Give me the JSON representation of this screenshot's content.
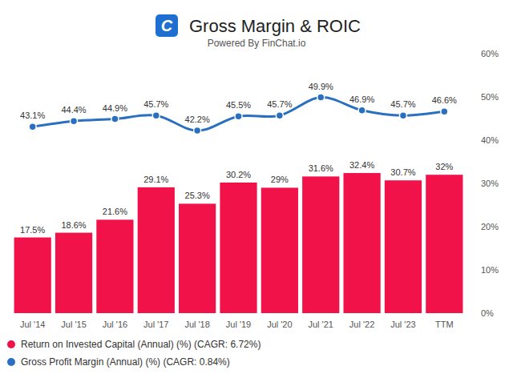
{
  "chart_data": {
    "type": "bar",
    "title": "Gross Margin & ROIC",
    "subtitle": "Powered By FinChat.io",
    "logo_text": "C",
    "categories": [
      "Jul '14",
      "Jul '15",
      "Jul '16",
      "Jul '17",
      "Jul '18",
      "Jul '19",
      "Jul '20",
      "Jul '21",
      "Jul '22",
      "Jul '23",
      "TTM"
    ],
    "series": [
      {
        "name": "Return on Invested Capital (Annual) (%) (CAGR: 6.72%)",
        "type": "bar",
        "color": "#f2124a",
        "values": [
          17.5,
          18.6,
          21.6,
          29.1,
          25.3,
          30.2,
          29,
          31.6,
          32.4,
          30.7,
          32
        ],
        "value_labels": [
          "17.5%",
          "18.6%",
          "21.6%",
          "29.1%",
          "25.3%",
          "30.2%",
          "29%",
          "31.6%",
          "32.4%",
          "30.7%",
          "32%"
        ]
      },
      {
        "name": "Gross Profit Margin (Annual) (%) (CAGR: 0.84%)",
        "type": "line",
        "color": "#2b6fc0",
        "marker": "circle",
        "values": [
          43.1,
          44.4,
          44.9,
          45.7,
          42.2,
          45.5,
          45.7,
          49.9,
          46.9,
          45.7,
          46.6
        ],
        "value_labels": [
          "43.1%",
          "44.4%",
          "44.9%",
          "45.7%",
          "42.2%",
          "45.5%",
          "45.7%",
          "49.9%",
          "46.9%",
          "45.7%",
          "46.6%"
        ]
      }
    ],
    "ylim": [
      0,
      60
    ],
    "yticks": [
      {
        "value": 0,
        "label": "0%"
      },
      {
        "value": 10,
        "label": "10%"
      },
      {
        "value": 20,
        "label": "20%"
      },
      {
        "value": 30,
        "label": "30%"
      },
      {
        "value": 40,
        "label": "40%"
      },
      {
        "value": 50,
        "label": "50%"
      },
      {
        "value": 60,
        "label": "60%"
      }
    ],
    "grid": false,
    "data_labels": true,
    "legend": "bottom-left"
  }
}
